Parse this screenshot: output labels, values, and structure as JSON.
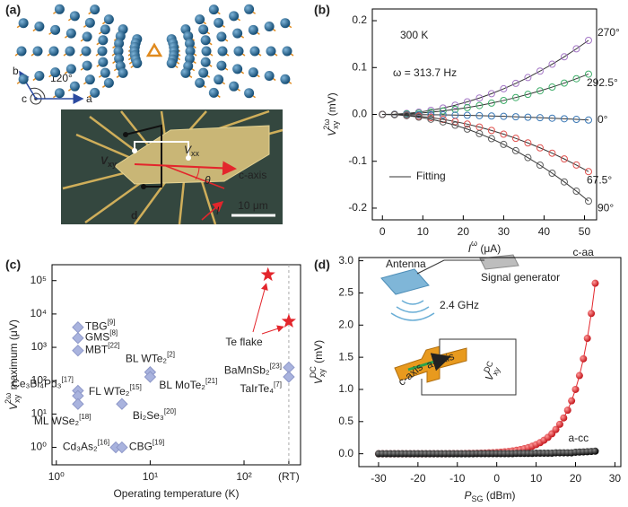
{
  "panel_labels": [
    "(a)",
    "(b)",
    "(c)",
    "(d)"
  ],
  "panel_a": {
    "angle": "120°",
    "axis_b": "b",
    "axis_c": "c",
    "axis_a": "a",
    "v_xy": {
      "base": "V",
      "sub": "xy"
    },
    "v_xx": {
      "base": "V",
      "sub": "xx"
    },
    "c_axis": "c-axis",
    "theta": "θ",
    "current": "I",
    "electrode": "d",
    "scale_bar": "10 μm"
  },
  "chart_data": [
    {
      "type": "line",
      "x_label": {
        "base": "I",
        "sup": "ω",
        "unit": " (μA)"
      },
      "y_label": {
        "base": "V",
        "sub": "xy",
        "sup": "2ω",
        "unit": " (mV)"
      },
      "annotations": [
        "300 K",
        "ω = 313.7 Hz"
      ],
      "fit_label": "Fitting",
      "xlim": [
        -2.5,
        53
      ],
      "ylim": [
        -0.225,
        0.225
      ],
      "xticks": [
        0,
        10,
        20,
        30,
        40,
        50
      ],
      "yticks": [
        -0.2,
        -0.1,
        {
          "value": 0,
          "label": "0.0"
        },
        0.1,
        0.2
      ],
      "x": [
        0,
        3,
        6,
        9,
        12,
        15,
        18,
        21,
        24,
        27,
        30,
        33,
        36,
        39,
        42,
        45,
        48,
        51
      ],
      "series": [
        {
          "name": "270°",
          "color": "#a477c6",
          "values": [
            0,
            0.0005,
            0.0022,
            0.0049,
            0.0087,
            0.0137,
            0.0197,
            0.0268,
            0.035,
            0.0443,
            0.0547,
            0.0662,
            0.0787,
            0.0924,
            0.1072,
            0.123,
            0.14,
            0.158
          ]
        },
        {
          "name": "292.5°",
          "color": "#3fae6a",
          "values": [
            0,
            0.0003,
            0.0012,
            0.0027,
            0.0048,
            0.0074,
            0.0107,
            0.0146,
            0.019,
            0.0241,
            0.0298,
            0.036,
            0.0428,
            0.0503,
            0.0583,
            0.0669,
            0.0762,
            0.086
          ]
        },
        {
          "name": "0°",
          "color": "#3b78b5",
          "values": [
            0,
            0,
            -0.0002,
            -0.0004,
            -0.0007,
            -0.001,
            -0.0015,
            -0.002,
            -0.0027,
            -0.0034,
            -0.0041,
            -0.005,
            -0.006,
            -0.007,
            -0.0081,
            -0.0093,
            -0.0106,
            -0.012
          ]
        },
        {
          "name": "67.5°",
          "color": "#e0524f",
          "values": [
            0,
            -0.0004,
            -0.0017,
            -0.0038,
            -0.0068,
            -0.0106,
            -0.0152,
            -0.0207,
            -0.027,
            -0.0342,
            -0.0422,
            -0.0511,
            -0.0608,
            -0.0713,
            -0.0827,
            -0.095,
            -0.108,
            -0.122
          ]
        },
        {
          "name": "90°",
          "color": "#5f5f5f",
          "values": [
            0,
            -0.0006,
            -0.0026,
            -0.0058,
            -0.0102,
            -0.016,
            -0.023,
            -0.0314,
            -0.041,
            -0.0518,
            -0.064,
            -0.0774,
            -0.0922,
            -0.1082,
            -0.1254,
            -0.144,
            -0.1638,
            -0.185
          ]
        }
      ]
    },
    {
      "type": "scatter",
      "x_label": "Operating temperature (K)",
      "y_label": {
        "base": "V",
        "sub": "xy",
        "sup": "2ω",
        "unit": " maximum (μV)"
      },
      "x_log": true,
      "y_log": true,
      "xlim": [
        0.9,
        400
      ],
      "ylim": [
        0.3,
        300000
      ],
      "xticks": [
        {
          "value": 1,
          "label": "10⁰"
        },
        {
          "value": 10,
          "label": "10¹"
        },
        {
          "value": 100,
          "label": "10²"
        },
        {
          "value": 300,
          "label": "(RT)"
        }
      ],
      "yticks": [
        {
          "value": 1,
          "label": "10⁰"
        },
        {
          "value": 10,
          "label": "10¹"
        },
        {
          "value": 100,
          "label": "10²"
        },
        {
          "value": 1000,
          "label": "10³"
        },
        {
          "value": 10000,
          "label": "10⁴"
        },
        {
          "value": 100000,
          "label": "10⁵"
        }
      ],
      "series": [
        {
          "name": "Te flake",
          "color": "#e3262c",
          "marker": "star",
          "x": [
            180,
            300
          ],
          "values": [
            150000,
            6000
          ]
        },
        {
          "color": "#a9b3de",
          "marker": "diamond",
          "x": [
            1.7,
            1.7,
            1.7,
            1.7,
            1.7,
            1.7,
            10,
            10,
            5,
            300,
            300,
            4.3,
            5
          ],
          "values": [
            4000,
            1900,
            800,
            50,
            35,
            20,
            180,
            130,
            20,
            250,
            130,
            1,
            1
          ],
          "point_labels": [
            {
              "name": "TBG",
              "ref": "[9]"
            },
            {
              "name": "GMS",
              "ref": "[8]"
            },
            {
              "name": "MBT",
              "ref": "[22]"
            },
            {
              "name": "Ce₃Bi₄Pd₃",
              "ref": "[17]"
            },
            {
              "name": "FL WTe₂",
              "ref": "[15]"
            },
            {
              "name": "ML WSe₂",
              "ref": "[18]"
            },
            {
              "name": "BL WTe₂",
              "ref": "[2]"
            },
            {
              "name": "BL MoTe₂",
              "ref": "[21]"
            },
            {
              "name": "Bi₂Se₃",
              "ref": "[20]"
            },
            {
              "name": "BaMnSb₂",
              "ref": "[23]"
            },
            {
              "name": "TaIrTe₄",
              "ref": "[7]"
            },
            {
              "name": "Cd₃As₂",
              "ref": "[16]"
            },
            {
              "name": "CBG",
              "ref": "[19]"
            }
          ]
        }
      ]
    },
    {
      "type": "line",
      "x_label": {
        "base": "P",
        "sub": "SG",
        "unit": " (dBm)"
      },
      "y_label": {
        "base": "V",
        "sub": "xy",
        "sup": "DC",
        "unit": " (mV)"
      },
      "inset": {
        "antenna": "Antenna",
        "generator": "Signal generator",
        "frequency": "2.4 GHz",
        "c_axis": "c-axis",
        "a_axis": "a-axis",
        "voltage": {
          "base": "V",
          "sub": "xy",
          "sup": "DC"
        }
      },
      "xlim": [
        -35,
        31.5
      ],
      "ylim": [
        -0.2,
        3.05
      ],
      "xticks": [
        -30,
        -20,
        -10,
        0,
        10,
        20,
        30
      ],
      "yticks": [
        {
          "value": 0,
          "label": "0.0"
        },
        0.5,
        {
          "value": 1,
          "label": "1.0"
        },
        1.5,
        {
          "value": 2,
          "label": "2.0"
        },
        2.5,
        {
          "value": 3,
          "label": "3.0"
        }
      ],
      "x": [
        -30,
        -29,
        -28,
        -27,
        -26,
        -25,
        -24,
        -23,
        -22,
        -21,
        -20,
        -19,
        -18,
        -17,
        -16,
        -15,
        -14,
        -13,
        -12,
        -11,
        -10,
        -9,
        -8,
        -7,
        -6,
        -5,
        -4,
        -3,
        -2,
        -1,
        0,
        1,
        2,
        3,
        4,
        5,
        6,
        7,
        8,
        9,
        10,
        11,
        12,
        13,
        14,
        15,
        16,
        17,
        18,
        19,
        20,
        21,
        22,
        23,
        24,
        25
      ],
      "series": [
        {
          "name": "c-aa",
          "color": "#e3262c",
          "values": [
            0,
            0,
            0,
            0,
            0,
            0,
            0,
            0,
            0,
            0,
            0,
            0,
            0,
            0.001,
            0.001,
            0.001,
            0.001,
            0.001,
            0.002,
            0.002,
            0.003,
            0.003,
            0.004,
            0.005,
            0.006,
            0.008,
            0.009,
            0.011,
            0.014,
            0.017,
            0.02,
            0.025,
            0.03,
            0.036,
            0.044,
            0.054,
            0.065,
            0.079,
            0.096,
            0.117,
            0.142,
            0.173,
            0.21,
            0.255,
            0.31,
            0.377,
            0.458,
            0.557,
            0.677,
            0.823,
            1.0,
            1.215,
            1.476,
            1.794,
            2.181,
            2.65
          ]
        },
        {
          "name": "a-cc",
          "color": "#111111",
          "values": [
            0,
            0,
            0,
            0,
            0,
            0,
            0,
            0,
            0,
            0,
            0,
            0,
            0,
            0,
            0,
            0,
            0,
            0,
            0,
            0,
            0,
            0,
            0,
            0,
            0,
            0.002,
            0.002,
            0.002,
            0.002,
            0.002,
            0.002,
            0.002,
            0.002,
            0.002,
            0.002,
            0.005,
            0.005,
            0.005,
            0.005,
            0.005,
            0.009,
            0.009,
            0.009,
            0.009,
            0.009,
            0.015,
            0.015,
            0.015,
            0.015,
            0.015,
            0.024,
            0.026,
            0.029,
            0.032,
            0.036,
            0.04
          ]
        }
      ]
    }
  ]
}
